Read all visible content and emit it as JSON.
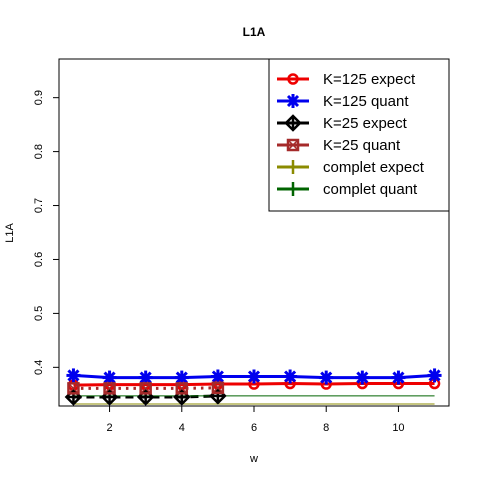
{
  "chart_data": {
    "type": "line",
    "title": "L1A",
    "xlabel": "w",
    "ylabel": "L1A",
    "xlim": [
      0.6,
      11.4
    ],
    "ylim": [
      0.3283,
      0.9717
    ],
    "xticks": [
      2,
      4,
      6,
      8,
      10
    ],
    "yticks": [
      0.4,
      0.5,
      0.6,
      0.7,
      0.8,
      0.9
    ],
    "grid": false,
    "legend_position": "top-right",
    "series": [
      {
        "name": "K=125 expect",
        "color": "#ee0000",
        "marker": "circle",
        "linestyle": "solid",
        "x": [
          1,
          2,
          3,
          4,
          5,
          6,
          7,
          8,
          9,
          10,
          11
        ],
        "y": [
          0.367,
          0.368,
          0.368,
          0.368,
          0.369,
          0.369,
          0.37,
          0.369,
          0.37,
          0.37,
          0.37
        ]
      },
      {
        "name": "K=125 quant",
        "color": "#0000ee",
        "marker": "star",
        "linestyle": "solid",
        "x": [
          1,
          2,
          3,
          4,
          5,
          6,
          7,
          8,
          9,
          10,
          11
        ],
        "y": [
          0.385,
          0.381,
          0.381,
          0.381,
          0.383,
          0.383,
          0.383,
          0.381,
          0.381,
          0.381,
          0.385
        ]
      },
      {
        "name": "K=25 expect",
        "color": "#000000",
        "marker": "diamond-plus",
        "linestyle": "dashed",
        "x": [
          1,
          2,
          3,
          4,
          5
        ],
        "y": [
          0.345,
          0.345,
          0.345,
          0.345,
          0.347
        ]
      },
      {
        "name": "K=25 quant",
        "color": "#a52a2a",
        "marker": "square-cross",
        "linestyle": "dotted",
        "x": [
          1,
          2,
          3,
          4,
          5
        ],
        "y": [
          0.361,
          0.361,
          0.361,
          0.361,
          0.362
        ]
      },
      {
        "name": "complet expect",
        "color": "#8b8b00",
        "marker": "plus",
        "linestyle": "solid",
        "x": [
          1,
          11
        ],
        "y": [
          0.332,
          0.332
        ]
      },
      {
        "name": "complet quant",
        "color": "#006400",
        "marker": "plus",
        "linestyle": "solid",
        "x": [
          1,
          11
        ],
        "y": [
          0.347,
          0.347
        ]
      }
    ]
  }
}
